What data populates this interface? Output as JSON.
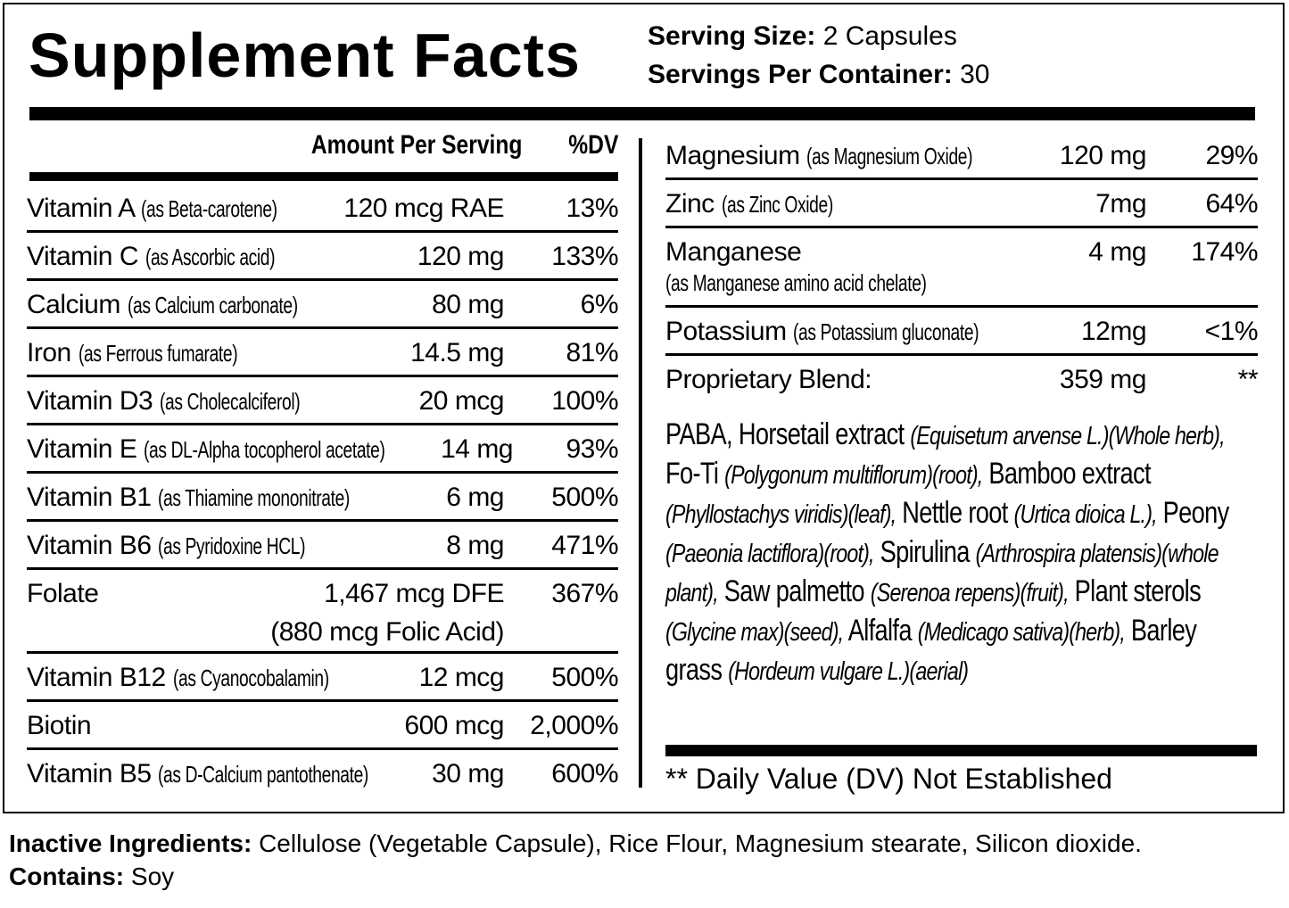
{
  "title": "Supplement Facts",
  "serving_size": {
    "label": "Serving Size:",
    "value": "2 Capsules"
  },
  "servings_per_container": {
    "label": "Servings Per Container:",
    "value": "30"
  },
  "columns": {
    "amount": "Amount Per Serving",
    "dv": "%DV"
  },
  "left_rows": [
    {
      "name": "Vitamin A",
      "sub": "(as Beta-carotene)",
      "amount": "120 mcg RAE",
      "dv": "13%"
    },
    {
      "name": "Vitamin C",
      "sub": "(as Ascorbic acid)",
      "amount": "120 mg",
      "dv": "133%"
    },
    {
      "name": "Calcium",
      "sub": "(as Calcium carbonate)",
      "amount": "80 mg",
      "dv": "6%"
    },
    {
      "name": "Iron",
      "sub": "(as Ferrous fumarate)",
      "amount": "14.5 mg",
      "dv": "81%"
    },
    {
      "name": "Vitamin D3",
      "sub": "(as Cholecalciferol)",
      "amount": "20 mcg",
      "dv": "100%"
    },
    {
      "name": "Vitamin E",
      "sub": "(as DL-Alpha tocopherol acetate)",
      "amount": "14 mg",
      "dv": "93%"
    },
    {
      "name": "Vitamin B1",
      "sub": "(as Thiamine mononitrate)",
      "amount": "6 mg",
      "dv": "500%"
    },
    {
      "name": "Vitamin B6",
      "sub": "(as Pyridoxine HCL)",
      "amount": "8 mg",
      "dv": "471%"
    },
    {
      "name": "Folate",
      "sub": "",
      "amount": "1,467 mcg DFE",
      "amount2": "(880 mcg Folic Acid)",
      "dv": "367%"
    },
    {
      "name": "Vitamin B12",
      "sub": "(as Cyanocobalamin)",
      "amount": "12 mcg",
      "dv": "500%"
    },
    {
      "name": "Biotin",
      "sub": "",
      "amount": "600 mcg",
      "dv": "2,000%"
    },
    {
      "name": "Vitamin B5",
      "sub": "(as D-Calcium pantothenate)",
      "amount": "30 mg",
      "dv": "600%"
    }
  ],
  "right_rows": [
    {
      "name": "Magnesium",
      "sub": "(as Magnesium Oxide)",
      "amount": "120 mg",
      "dv": "29%"
    },
    {
      "name": "Zinc",
      "sub": "(as Zinc Oxide)",
      "amount": "7mg",
      "dv": "64%"
    },
    {
      "name": "Manganese",
      "sub": "(as Manganese amino acid chelate)",
      "amount": "4 mg",
      "dv": "174%"
    },
    {
      "name": "Potassium",
      "sub": "(as Potassium gluconate)",
      "amount": "12mg",
      "dv": "<1%"
    },
    {
      "name": "Proprietary Blend:",
      "sub": "",
      "amount": "359 mg",
      "dv": "**"
    }
  ],
  "blend": [
    {
      "t": "PABA, Horsetail extract "
    },
    {
      "t": "(Equisetum arvense L.)(Whole herb),",
      "i": true
    },
    {
      "t": " Fo-Ti "
    },
    {
      "t": "(Polygonum multiflorum)(root),",
      "i": true
    },
    {
      "t": " Bamboo extract "
    },
    {
      "t": "(Phyllostachys viridis)(leaf),",
      "i": true
    },
    {
      "t": " Nettle root "
    },
    {
      "t": "(Urtica dioica L.),",
      "i": true
    },
    {
      "t": "  Peony "
    },
    {
      "t": "(Paeonia lactiflora)(root),",
      "i": true
    },
    {
      "t": " Spirulina "
    },
    {
      "t": "(Arthrospira platensis)(whole plant),",
      "i": true
    },
    {
      "t": " Saw palmetto "
    },
    {
      "t": "(Serenoa repens)(fruit),",
      "i": true
    },
    {
      "t": " Plant sterols "
    },
    {
      "t": "(Glycine max)(seed),",
      "i": true
    },
    {
      "t": " Alfalfa "
    },
    {
      "t": "(Medicago sativa)(herb),",
      "i": true
    },
    {
      "t": " Barley grass "
    },
    {
      "t": "(Hordeum vulgare L.)(aerial)",
      "i": true
    }
  ],
  "note": "** Daily Value (DV) Not Established",
  "inactive": {
    "label": "Inactive Ingredients:",
    "value": " Cellulose (Vegetable Capsule), Rice Flour, Magnesium stearate, Silicon dioxide."
  },
  "contains": {
    "label": "Contains:",
    "value": " Soy"
  }
}
